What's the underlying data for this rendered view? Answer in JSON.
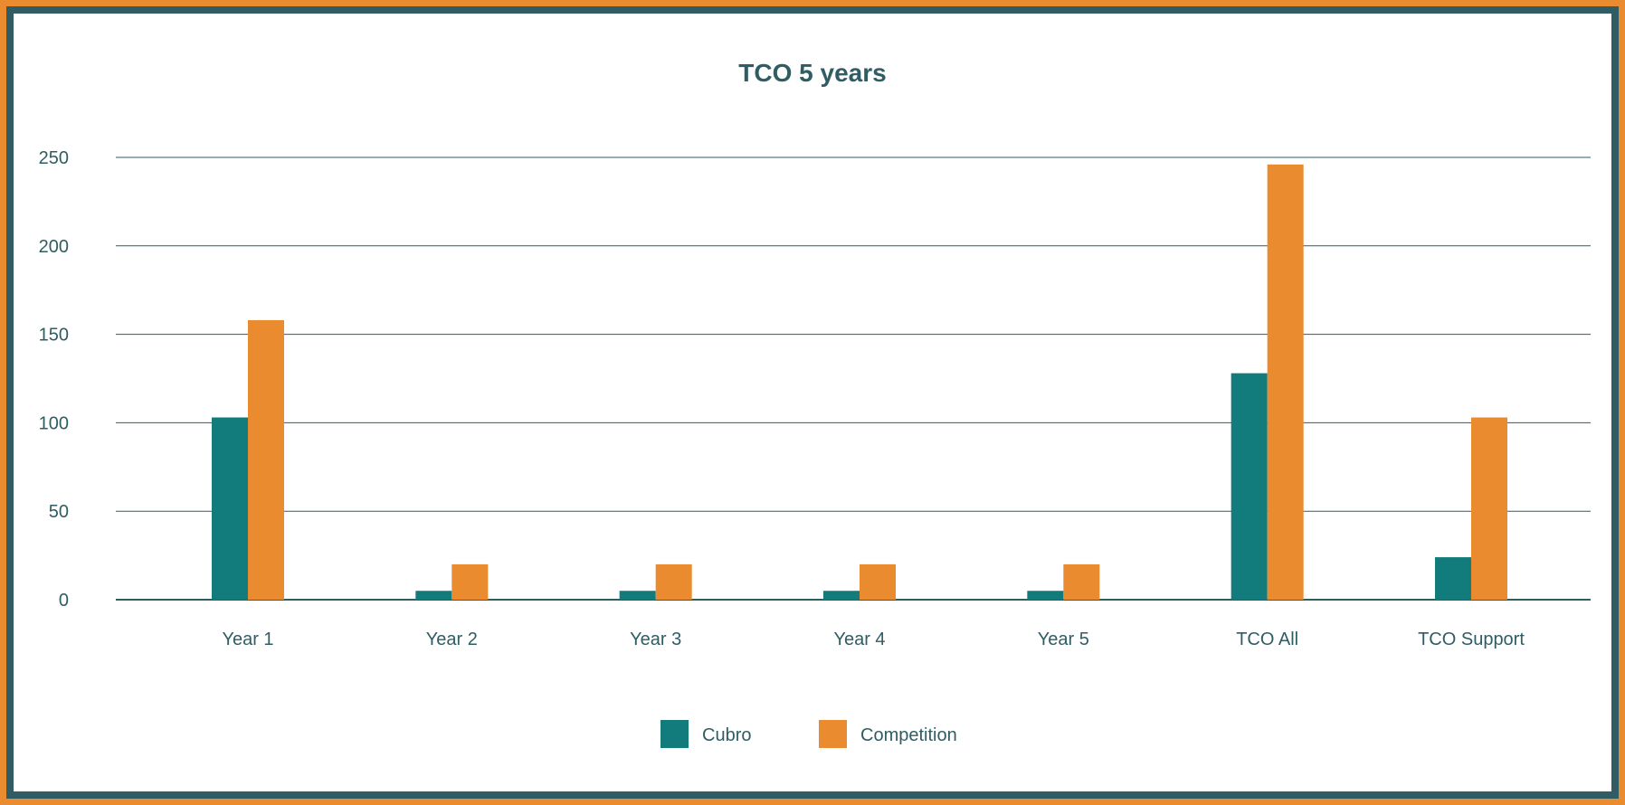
{
  "chart_data": {
    "type": "bar",
    "title": "TCO 5 years",
    "categories": [
      "Year 1",
      "Year 2",
      "Year 3",
      "Year 4",
      "Year 5",
      "TCO All",
      "TCO Support"
    ],
    "series": [
      {
        "name": "Cubro",
        "color": "#127b7b",
        "values": [
          103,
          5,
          5,
          5,
          5,
          128,
          24
        ]
      },
      {
        "name": "Competition",
        "color": "#e98b2e",
        "values": [
          158,
          20,
          20,
          20,
          20,
          246,
          103
        ]
      }
    ],
    "ylim": [
      0,
      250
    ],
    "yticks": [
      0,
      50,
      100,
      150,
      200,
      250
    ],
    "grid": true,
    "legend": "bottom-center",
    "xlabel": "",
    "ylabel": ""
  },
  "colors": {
    "frame_outer": "#e98b2e",
    "frame_inner": "#2f5d63",
    "text": "#2f5d63",
    "grid": "#2f5d63"
  }
}
